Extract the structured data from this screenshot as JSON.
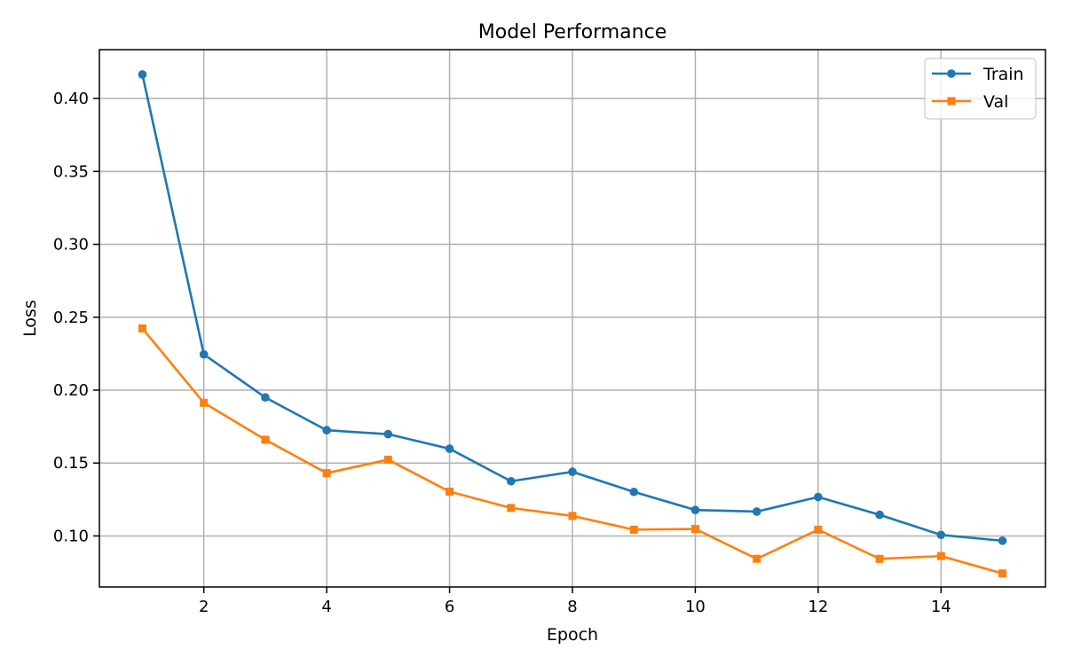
{
  "chart_data": {
    "type": "line",
    "title": "Model Performance",
    "xlabel": "Epoch",
    "ylabel": "Loss",
    "xlim": [
      0.3,
      15.7
    ],
    "ylim": [
      0.065,
      0.4335
    ],
    "xticks": [
      2,
      4,
      6,
      8,
      10,
      12,
      14
    ],
    "yticks": [
      0.1,
      0.15,
      0.2,
      0.25,
      0.3,
      0.35,
      0.4
    ],
    "grid": true,
    "legend_position": "top-right",
    "x": [
      1,
      2,
      3,
      4,
      5,
      6,
      7,
      8,
      9,
      10,
      11,
      12,
      13,
      14,
      15
    ],
    "series": [
      {
        "name": "Train",
        "color": "#1f77b4",
        "marker": "circle",
        "values": [
          0.4165,
          0.2245,
          0.195,
          0.1725,
          0.1698,
          0.1598,
          0.1375,
          0.144,
          0.1302,
          0.1178,
          0.1167,
          0.1267,
          0.1145,
          0.1007,
          0.0967
        ]
      },
      {
        "name": "Val",
        "color": "#ff7f0e",
        "marker": "square",
        "values": [
          0.2423,
          0.1913,
          0.166,
          0.1431,
          0.1523,
          0.1304,
          0.1192,
          0.1137,
          0.1043,
          0.1048,
          0.0843,
          0.1043,
          0.0843,
          0.0862,
          0.0743
        ]
      }
    ]
  }
}
